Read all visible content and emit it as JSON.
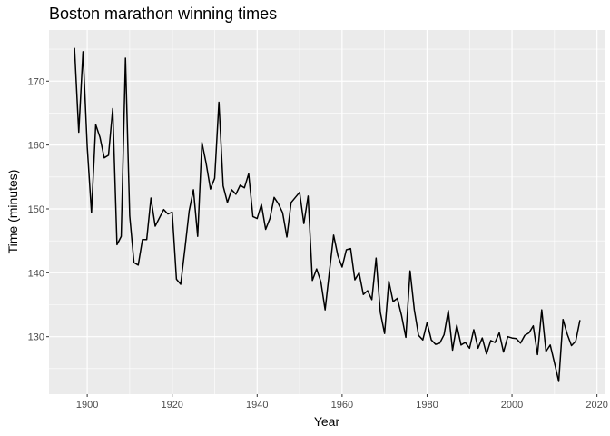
{
  "chart_data": {
    "type": "line",
    "title": "Boston marathon winning times",
    "xlabel": "Year",
    "ylabel": "Time (minutes)",
    "xlim": [
      1891,
      2022
    ],
    "ylim": [
      121,
      178
    ],
    "xticks": [
      1900,
      1920,
      1940,
      1960,
      1980,
      2000,
      2020
    ],
    "yticks": [
      130,
      140,
      150,
      160,
      170
    ],
    "grid": true,
    "legend": "none",
    "colors": {
      "panel": "#ebebeb",
      "grid": "#ffffff",
      "line": "#000000"
    },
    "series": [
      {
        "x": [
          1897,
          1898,
          1899,
          1900,
          1901,
          1902,
          1903,
          1904,
          1905,
          1906,
          1907,
          1908,
          1909,
          1910,
          1911,
          1912,
          1913,
          1914,
          1915,
          1916,
          1917,
          1918,
          1919,
          1920,
          1921,
          1922,
          1923,
          1924,
          1925,
          1926,
          1927,
          1928,
          1929,
          1930,
          1931,
          1932,
          1933,
          1934,
          1935,
          1936,
          1937,
          1938,
          1939,
          1940,
          1941,
          1942,
          1943,
          1944,
          1945,
          1946,
          1947,
          1948,
          1949,
          1950,
          1951,
          1952,
          1953,
          1954,
          1955,
          1956,
          1957,
          1958,
          1959,
          1960,
          1961,
          1962,
          1963,
          1964,
          1965,
          1966,
          1967,
          1968,
          1969,
          1970,
          1971,
          1972,
          1973,
          1974,
          1975,
          1976,
          1977,
          1978,
          1979,
          1980,
          1981,
          1982,
          1983,
          1984,
          1985,
          1986,
          1987,
          1988,
          1989,
          1990,
          1991,
          1992,
          1993,
          1994,
          1995,
          1996,
          1997,
          1998,
          1999,
          2000,
          2001,
          2002,
          2003,
          2004,
          2005,
          2006,
          2007,
          2008,
          2009,
          2010,
          2011,
          2012,
          2013,
          2014,
          2015,
          2016
        ],
        "y": [
          175.2,
          162.0,
          174.6,
          159.7,
          149.4,
          163.2,
          161.2,
          158.0,
          158.4,
          165.7,
          144.4,
          145.7,
          173.6,
          148.9,
          141.6,
          141.2,
          145.2,
          145.2,
          151.7,
          147.3,
          148.6,
          149.9,
          149.2,
          149.5,
          139.0,
          138.2,
          143.8,
          149.7,
          153.0,
          145.7,
          160.4,
          157.1,
          153.1,
          154.8,
          166.7,
          153.6,
          151.0,
          153.0,
          152.3,
          153.7,
          153.3,
          155.5,
          148.8,
          148.5,
          150.7,
          146.8,
          148.5,
          151.8,
          150.8,
          149.4,
          145.6,
          151.0,
          151.8,
          152.6,
          147.7,
          152.0,
          138.8,
          140.6,
          138.6,
          134.2,
          140.1,
          145.9,
          142.7,
          140.9,
          143.6,
          143.8,
          138.9,
          140.0,
          136.6,
          137.2,
          135.8,
          142.3,
          133.8,
          130.5,
          138.7,
          135.5,
          136.0,
          133.3,
          129.9,
          140.3,
          134.2,
          130.2,
          129.5,
          132.2,
          129.5,
          128.8,
          129.0,
          130.3,
          134.1,
          127.9,
          131.8,
          128.7,
          129.1,
          128.2,
          131.1,
          128.2,
          129.8,
          127.3,
          129.4,
          129.1,
          130.6,
          127.6,
          130.0,
          129.8,
          129.7,
          129.0,
          130.2,
          130.6,
          131.7,
          127.2,
          134.2,
          127.7,
          128.7,
          125.9,
          123.0,
          132.7,
          130.4,
          128.6,
          129.3,
          132.6
        ]
      }
    ]
  }
}
